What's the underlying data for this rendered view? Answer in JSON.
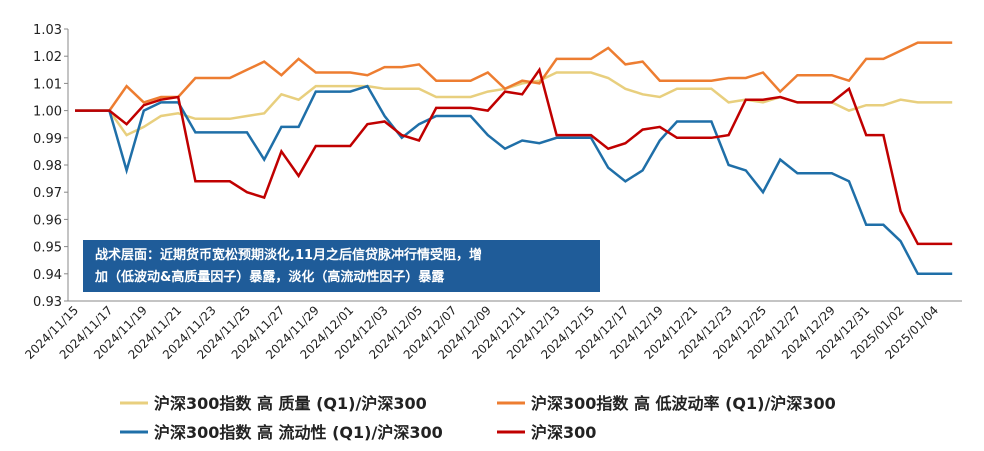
{
  "chart_data": {
    "type": "line",
    "categories": [
      "2024/11/15",
      null,
      "2024/11/17",
      null,
      "2024/11/19",
      null,
      "2024/11/21",
      null,
      "2024/11/23",
      null,
      "2024/11/25",
      null,
      "2024/11/27",
      null,
      "2024/11/29",
      null,
      "2024/12/01",
      null,
      "2024/12/03",
      null,
      "2024/12/05",
      null,
      "2024/12/07",
      null,
      "2024/12/09",
      null,
      "2024/12/11",
      null,
      "2024/12/13",
      null,
      "2024/12/15",
      null,
      "2024/12/17",
      null,
      "2024/12/19",
      null,
      "2024/12/21",
      null,
      "2024/12/23",
      null,
      "2024/12/25",
      null,
      "2024/12/27",
      null,
      "2024/12/29",
      null,
      "2024/12/31",
      null,
      "2025/01/02",
      null,
      "2025/01/04",
      null
    ],
    "series": [
      {
        "name": "沪深300指数 高 质量 (Q1)/沪深300",
        "color": "#E8CF7E",
        "values": [
          1.0,
          1.0,
          1.0,
          0.991,
          0.994,
          0.998,
          0.999,
          0.997,
          0.997,
          0.997,
          0.998,
          0.999,
          1.006,
          1.004,
          1.009,
          1.009,
          1.009,
          1.009,
          1.008,
          1.008,
          1.008,
          1.005,
          1.005,
          1.005,
          1.007,
          1.008,
          1.01,
          1.011,
          1.014,
          1.014,
          1.014,
          1.012,
          1.008,
          1.006,
          1.005,
          1.008,
          1.008,
          1.008,
          1.003,
          1.004,
          1.003,
          1.005,
          1.003,
          1.003,
          1.003,
          1.0,
          1.002,
          1.002,
          1.004,
          1.003,
          1.003,
          1.003
        ]
      },
      {
        "name": "沪深300指数 高 低波动率 (Q1)/沪深300",
        "color": "#ED7D31",
        "values": [
          1.0,
          1.0,
          1.0,
          1.009,
          1.003,
          1.005,
          1.005,
          1.012,
          1.012,
          1.012,
          1.015,
          1.018,
          1.013,
          1.019,
          1.014,
          1.014,
          1.014,
          1.013,
          1.016,
          1.016,
          1.017,
          1.011,
          1.011,
          1.011,
          1.014,
          1.008,
          1.011,
          1.01,
          1.019,
          1.019,
          1.019,
          1.023,
          1.017,
          1.018,
          1.011,
          1.011,
          1.011,
          1.011,
          1.012,
          1.012,
          1.014,
          1.007,
          1.013,
          1.013,
          1.013,
          1.011,
          1.019,
          1.019,
          1.022,
          1.025,
          1.025,
          1.025
        ]
      },
      {
        "name": "沪深300指数 高 流动性 (Q1)/沪深300",
        "color": "#1F6FA8",
        "values": [
          1.0,
          1.0,
          1.0,
          0.978,
          1.0,
          1.003,
          1.003,
          0.992,
          0.992,
          0.992,
          0.992,
          0.982,
          0.994,
          0.994,
          1.007,
          1.007,
          1.007,
          1.009,
          0.998,
          0.99,
          0.995,
          0.998,
          0.998,
          0.998,
          0.991,
          0.986,
          0.989,
          0.988,
          0.99,
          0.99,
          0.99,
          0.979,
          0.974,
          0.978,
          0.989,
          0.996,
          0.996,
          0.996,
          0.98,
          0.978,
          0.97,
          0.982,
          0.977,
          0.977,
          0.977,
          0.974,
          0.958,
          0.958,
          0.952,
          0.94,
          0.94,
          0.94
        ]
      },
      {
        "name": "沪深300",
        "color": "#C00000",
        "values": [
          1.0,
          1.0,
          1.0,
          0.995,
          1.002,
          1.004,
          1.005,
          0.974,
          0.974,
          0.974,
          0.97,
          0.968,
          0.985,
          0.976,
          0.987,
          0.987,
          0.987,
          0.995,
          0.996,
          0.991,
          0.989,
          1.001,
          1.001,
          1.001,
          1.0,
          1.007,
          1.006,
          1.015,
          0.991,
          0.991,
          0.991,
          0.986,
          0.988,
          0.993,
          0.994,
          0.99,
          0.99,
          0.99,
          0.991,
          1.004,
          1.004,
          1.005,
          1.003,
          1.003,
          1.003,
          1.008,
          0.991,
          0.991,
          0.963,
          0.951,
          0.951,
          0.951
        ]
      }
    ],
    "ylim": [
      0.93,
      1.03
    ],
    "yticks": [
      0.93,
      0.94,
      0.95,
      0.96,
      0.97,
      0.98,
      0.99,
      {
        "value": 1,
        "label": "1.00"
      },
      1.01,
      1.02,
      1.03
    ],
    "annotation": [
      "战术层面：近期货币宽松预期淡化,11月之后信贷脉冲行情受阻，增",
      "加（低波动&高质量因子）暴露，淡化（高流动性因子）暴露"
    ],
    "grid": false
  }
}
